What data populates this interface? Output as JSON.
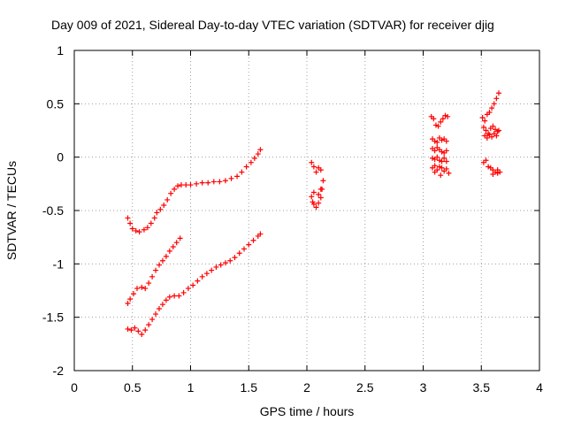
{
  "chart_data": {
    "type": "scatter",
    "title": "Day 009 of 2021, Sidereal Day-to-day VTEC variation (SDTVAR) for receiver djig",
    "xlabel": "GPS time / hours",
    "ylabel": "SDTVAR / TECUs",
    "xlim": [
      0,
      4
    ],
    "ylim": [
      -2,
      1
    ],
    "xticks": [
      0,
      0.5,
      1,
      1.5,
      2,
      2.5,
      3,
      3.5,
      4
    ],
    "xtick_labels": [
      "0",
      "0.5",
      "1",
      "1.5",
      "2",
      "2.5",
      "3",
      "3.5",
      "4"
    ],
    "yticks": [
      -2,
      -1.5,
      -1,
      -0.5,
      0,
      0.5,
      1
    ],
    "ytick_labels": [
      "-2",
      "-1.5",
      "-1",
      "-0.5",
      "0",
      "0.5",
      "1"
    ],
    "grid": true,
    "marker": "plus",
    "color": "#ff0000",
    "series": [
      {
        "points": [
          [
            0.46,
            -0.57
          ],
          [
            0.48,
            -0.62
          ],
          [
            0.5,
            -0.67
          ],
          [
            0.53,
            -0.69
          ],
          [
            0.56,
            -0.7
          ],
          [
            0.6,
            -0.68
          ],
          [
            0.63,
            -0.66
          ],
          [
            0.66,
            -0.62
          ],
          [
            0.69,
            -0.57
          ],
          [
            0.71,
            -0.52
          ],
          [
            0.74,
            -0.49
          ],
          [
            0.77,
            -0.45
          ],
          [
            0.8,
            -0.4
          ],
          [
            0.83,
            -0.34
          ],
          [
            0.86,
            -0.3
          ],
          [
            0.89,
            -0.27
          ],
          [
            0.92,
            -0.26
          ],
          [
            0.96,
            -0.26
          ],
          [
            1.0,
            -0.26
          ],
          [
            1.05,
            -0.25
          ],
          [
            1.1,
            -0.24
          ],
          [
            1.15,
            -0.24
          ],
          [
            1.2,
            -0.23
          ],
          [
            1.25,
            -0.23
          ],
          [
            1.3,
            -0.22
          ],
          [
            1.35,
            -0.2
          ],
          [
            1.4,
            -0.18
          ],
          [
            1.44,
            -0.14
          ],
          [
            1.48,
            -0.09
          ],
          [
            1.52,
            -0.05
          ],
          [
            1.55,
            -0.01
          ],
          [
            1.58,
            0.03
          ],
          [
            1.6,
            0.07
          ]
        ]
      },
      {
        "points": [
          [
            0.46,
            -1.37
          ],
          [
            0.48,
            -1.33
          ],
          [
            0.51,
            -1.28
          ],
          [
            0.54,
            -1.23
          ],
          [
            0.58,
            -1.22
          ],
          [
            0.61,
            -1.23
          ],
          [
            0.64,
            -1.18
          ],
          [
            0.67,
            -1.12
          ],
          [
            0.7,
            -1.06
          ],
          [
            0.73,
            -1.01
          ],
          [
            0.76,
            -0.97
          ],
          [
            0.79,
            -0.93
          ],
          [
            0.82,
            -0.88
          ],
          [
            0.85,
            -0.84
          ],
          [
            0.88,
            -0.8
          ],
          [
            0.91,
            -0.76
          ]
        ]
      },
      {
        "points": [
          [
            0.46,
            -1.61
          ],
          [
            0.49,
            -1.62
          ],
          [
            0.52,
            -1.6
          ],
          [
            0.55,
            -1.63
          ],
          [
            0.58,
            -1.66
          ],
          [
            0.61,
            -1.62
          ],
          [
            0.64,
            -1.57
          ],
          [
            0.67,
            -1.52
          ],
          [
            0.7,
            -1.47
          ],
          [
            0.73,
            -1.42
          ],
          [
            0.76,
            -1.38
          ],
          [
            0.79,
            -1.34
          ],
          [
            0.82,
            -1.31
          ],
          [
            0.86,
            -1.3
          ],
          [
            0.9,
            -1.3
          ],
          [
            0.94,
            -1.27
          ],
          [
            0.98,
            -1.23
          ],
          [
            1.02,
            -1.2
          ],
          [
            1.06,
            -1.16
          ],
          [
            1.1,
            -1.12
          ],
          [
            1.14,
            -1.09
          ],
          [
            1.18,
            -1.06
          ],
          [
            1.22,
            -1.03
          ],
          [
            1.26,
            -1.01
          ],
          [
            1.3,
            -0.99
          ],
          [
            1.34,
            -0.97
          ],
          [
            1.38,
            -0.94
          ],
          [
            1.42,
            -0.9
          ],
          [
            1.46,
            -0.86
          ],
          [
            1.5,
            -0.82
          ],
          [
            1.54,
            -0.78
          ],
          [
            1.58,
            -0.74
          ],
          [
            1.6,
            -0.72
          ]
        ]
      },
      {
        "points": [
          [
            2.04,
            -0.05
          ],
          [
            2.06,
            -0.09
          ],
          [
            2.08,
            -0.14
          ],
          [
            2.1,
            -0.1
          ],
          [
            2.12,
            -0.12
          ],
          [
            2.14,
            -0.22
          ],
          [
            2.12,
            -0.3
          ],
          [
            2.1,
            -0.35
          ],
          [
            2.06,
            -0.33
          ],
          [
            2.04,
            -0.37
          ],
          [
            2.06,
            -0.44
          ],
          [
            2.08,
            -0.47
          ],
          [
            2.1,
            -0.43
          ],
          [
            2.12,
            -0.38
          ],
          [
            2.13,
            -0.3
          ],
          [
            2.05,
            -0.42
          ]
        ]
      },
      {
        "points": [
          [
            3.07,
            0.38
          ],
          [
            3.09,
            0.36
          ],
          [
            3.11,
            0.3
          ],
          [
            3.13,
            0.29
          ],
          [
            3.15,
            0.33
          ],
          [
            3.17,
            0.36
          ],
          [
            3.19,
            0.39
          ],
          [
            3.21,
            0.38
          ],
          [
            3.08,
            0.17
          ],
          [
            3.1,
            0.15
          ],
          [
            3.12,
            0.14
          ],
          [
            3.14,
            0.18
          ],
          [
            3.16,
            0.16
          ],
          [
            3.18,
            0.17
          ],
          [
            3.2,
            0.15
          ],
          [
            3.08,
            0.08
          ],
          [
            3.1,
            0.06
          ],
          [
            3.12,
            0.09
          ],
          [
            3.14,
            0.07
          ],
          [
            3.16,
            0.05
          ],
          [
            3.18,
            0.04
          ],
          [
            3.2,
            0.06
          ],
          [
            3.08,
            -0.01
          ],
          [
            3.1,
            -0.02
          ],
          [
            3.12,
            0.0
          ],
          [
            3.14,
            -0.03
          ],
          [
            3.16,
            -0.04
          ],
          [
            3.18,
            -0.01
          ],
          [
            3.2,
            -0.04
          ],
          [
            3.08,
            -0.1
          ],
          [
            3.1,
            -0.08
          ],
          [
            3.12,
            -0.12
          ],
          [
            3.14,
            -0.09
          ],
          [
            3.16,
            -0.1
          ],
          [
            3.18,
            -0.13
          ],
          [
            3.2,
            -0.11
          ],
          [
            3.22,
            -0.15
          ],
          [
            3.1,
            -0.14
          ],
          [
            3.15,
            -0.17
          ]
        ]
      },
      {
        "points": [
          [
            3.51,
            0.37
          ],
          [
            3.53,
            0.34
          ],
          [
            3.55,
            0.4
          ],
          [
            3.57,
            0.42
          ],
          [
            3.59,
            0.46
          ],
          [
            3.61,
            0.5
          ],
          [
            3.63,
            0.55
          ],
          [
            3.65,
            0.6
          ],
          [
            3.52,
            0.28
          ],
          [
            3.54,
            0.25
          ],
          [
            3.56,
            0.22
          ],
          [
            3.58,
            0.27
          ],
          [
            3.6,
            0.29
          ],
          [
            3.62,
            0.26
          ],
          [
            3.64,
            0.24
          ],
          [
            3.53,
            0.2
          ],
          [
            3.55,
            0.18
          ],
          [
            3.57,
            0.21
          ],
          [
            3.59,
            0.19
          ],
          [
            3.61,
            0.22
          ],
          [
            3.63,
            0.2
          ],
          [
            3.65,
            0.25
          ],
          [
            3.52,
            -0.05
          ],
          [
            3.54,
            -0.03
          ],
          [
            3.56,
            -0.09
          ],
          [
            3.58,
            -0.1
          ],
          [
            3.6,
            -0.12
          ],
          [
            3.62,
            -0.14
          ],
          [
            3.64,
            -0.15
          ],
          [
            3.66,
            -0.14
          ],
          [
            3.6,
            -0.16
          ],
          [
            3.64,
            -0.12
          ]
        ]
      }
    ]
  }
}
